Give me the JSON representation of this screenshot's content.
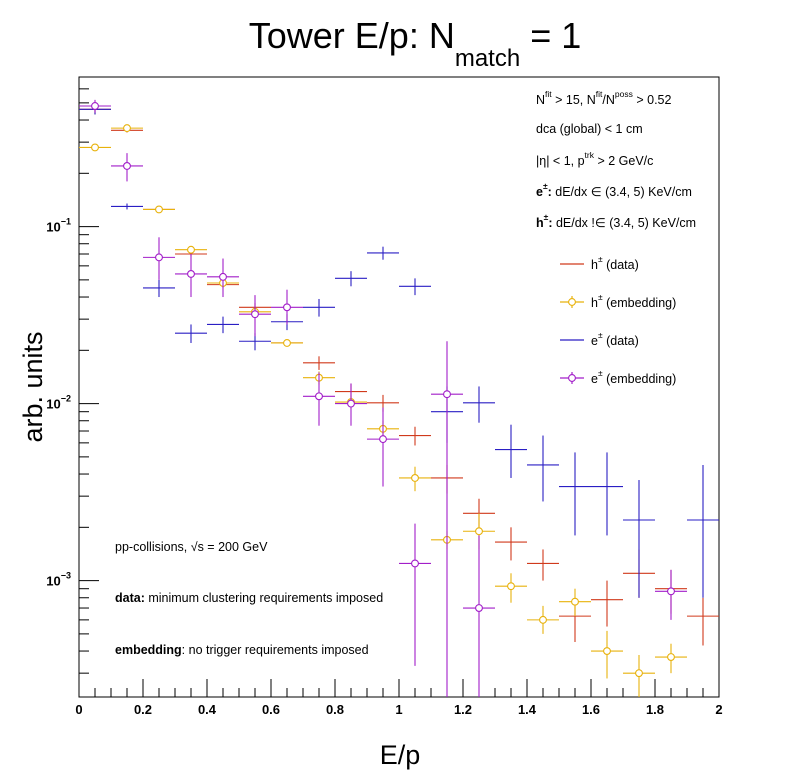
{
  "chart_data": {
    "type": "scatter",
    "title": {
      "main": "Tower E/p: N",
      "sub": "match",
      "suffix": " = 1"
    },
    "xlabel": "E/p",
    "ylabel": "arb. units",
    "xlim": [
      0,
      2
    ],
    "ylim": [
      0.00022,
      0.7
    ],
    "yscale": "log",
    "x_ticks": [
      {
        "v": 0,
        "label": "0"
      },
      {
        "v": 0.2,
        "label": "0.2"
      },
      {
        "v": 0.4,
        "label": "0.4"
      },
      {
        "v": 0.6,
        "label": "0.6"
      },
      {
        "v": 0.8,
        "label": "0.8"
      },
      {
        "v": 1,
        "label": "1"
      },
      {
        "v": 1.2,
        "label": "1.2"
      },
      {
        "v": 1.4,
        "label": "1.4"
      },
      {
        "v": 1.6,
        "label": "1.6"
      },
      {
        "v": 1.8,
        "label": "1.8"
      },
      {
        "v": 2,
        "label": "2"
      }
    ],
    "y_ticks": [
      {
        "v": 0.001,
        "label": "10",
        "exp": "−3"
      },
      {
        "v": 0.01,
        "label": "10",
        "exp": "−2"
      },
      {
        "v": 0.1,
        "label": "10",
        "exp": "−1"
      }
    ],
    "grid": false,
    "legend_position": "top-right",
    "bin_width": 0.1,
    "series": [
      {
        "name": "h± (data)",
        "name_base": "h",
        "name_sup": "±",
        "name_rest": " (data)",
        "color": "#d03a1c",
        "marker": "none",
        "points": [
          [
            0.05,
            0.46,
            0.43,
            0.49
          ],
          [
            0.15,
            0.35,
            0.34,
            0.36
          ],
          [
            0.25,
            0.125,
            0.122,
            0.128
          ],
          [
            0.35,
            0.07,
            0.068,
            0.072
          ],
          [
            0.45,
            0.047,
            0.045,
            0.049
          ],
          [
            0.55,
            0.035,
            0.033,
            0.037
          ],
          [
            0.65,
            0.022,
            0.021,
            0.023
          ],
          [
            0.75,
            0.017,
            0.0155,
            0.0185
          ],
          [
            0.85,
            0.0117,
            0.0105,
            0.0129
          ],
          [
            0.95,
            0.0101,
            0.009,
            0.0112
          ],
          [
            1.05,
            0.0066,
            0.0058,
            0.0074
          ],
          [
            1.15,
            0.0038,
            0.0031,
            0.0045
          ],
          [
            1.25,
            0.0024,
            0.002,
            0.0029
          ],
          [
            1.35,
            0.00165,
            0.0013,
            0.002
          ],
          [
            1.45,
            0.00125,
            0.001,
            0.0015
          ],
          [
            1.55,
            0.00063,
            0.00045,
            0.0008
          ],
          [
            1.65,
            0.00078,
            0.00055,
            0.001
          ],
          [
            1.75,
            0.0011,
            0.0008,
            0.0015
          ],
          [
            1.85,
            0.0009,
            0.00065,
            0.00115
          ],
          [
            1.95,
            0.00063,
            0.00043,
            0.0008
          ]
        ]
      },
      {
        "name": "h± (embedding)",
        "name_base": "h",
        "name_sup": "±",
        "name_rest": " (embedding)",
        "color": "#e8b20c",
        "marker": "circle",
        "points": [
          [
            0.05,
            0.28,
            0.27,
            0.29
          ],
          [
            0.15,
            0.36,
            0.35,
            0.37
          ],
          [
            0.25,
            0.125,
            0.122,
            0.128
          ],
          [
            0.35,
            0.074,
            0.071,
            0.077
          ],
          [
            0.45,
            0.048,
            0.046,
            0.05
          ],
          [
            0.55,
            0.033,
            0.031,
            0.035
          ],
          [
            0.65,
            0.022,
            0.021,
            0.023
          ],
          [
            0.75,
            0.014,
            0.0128,
            0.0152
          ],
          [
            0.85,
            0.0102,
            0.0093,
            0.0111
          ],
          [
            0.95,
            0.0072,
            0.0064,
            0.008
          ],
          [
            1.05,
            0.0038,
            0.0032,
            0.0044
          ],
          [
            1.15,
            0.0017,
            0.0015,
            0.0019
          ],
          [
            1.25,
            0.0019,
            0.0015,
            0.0024
          ],
          [
            1.35,
            0.00093,
            0.00075,
            0.0011
          ],
          [
            1.45,
            0.0006,
            0.0005,
            0.00072
          ],
          [
            1.55,
            0.00076,
            0.00063,
            0.0009
          ],
          [
            1.65,
            0.0004,
            0.00028,
            0.00052
          ],
          [
            1.75,
            0.0003,
            0.00022,
            0.00038
          ],
          [
            1.85,
            0.00037,
            0.0003,
            0.00044
          ]
        ]
      },
      {
        "name": "e± (data)",
        "name_base": "e",
        "name_sup": "±",
        "name_rest": " (data)",
        "color": "#2a1fc4",
        "marker": "none",
        "points": [
          [
            0.05,
            0.46,
            0.43,
            0.49
          ],
          [
            0.15,
            0.13,
            0.125,
            0.135
          ],
          [
            0.25,
            0.045,
            0.04,
            0.05
          ],
          [
            0.35,
            0.025,
            0.022,
            0.028
          ],
          [
            0.45,
            0.028,
            0.025,
            0.031
          ],
          [
            0.55,
            0.0225,
            0.02,
            0.025
          ],
          [
            0.65,
            0.029,
            0.026,
            0.032
          ],
          [
            0.75,
            0.035,
            0.031,
            0.039
          ],
          [
            0.85,
            0.051,
            0.046,
            0.056
          ],
          [
            0.95,
            0.071,
            0.065,
            0.077
          ],
          [
            1.05,
            0.046,
            0.041,
            0.051
          ],
          [
            1.15,
            0.009,
            0.006,
            0.0125
          ],
          [
            1.25,
            0.0101,
            0.0078,
            0.0125
          ],
          [
            1.35,
            0.0055,
            0.0038,
            0.0076
          ],
          [
            1.45,
            0.0045,
            0.0028,
            0.0066
          ],
          [
            1.55,
            0.0034,
            0.0018,
            0.0053
          ],
          [
            1.65,
            0.0034,
            0.0018,
            0.0053
          ],
          [
            1.75,
            0.0022,
            0.0008,
            0.0037
          ],
          [
            1.95,
            0.0022,
            0.0008,
            0.0045
          ]
        ]
      },
      {
        "name": "e± (embedding)",
        "name_base": "e",
        "name_sup": "±",
        "name_rest": " (embedding)",
        "color": "#a21ec9",
        "marker": "circle",
        "points": [
          [
            0.05,
            0.48,
            0.44,
            0.52
          ],
          [
            0.15,
            0.22,
            0.18,
            0.26
          ],
          [
            0.25,
            0.067,
            0.05,
            0.087
          ],
          [
            0.35,
            0.054,
            0.04,
            0.07
          ],
          [
            0.45,
            0.052,
            0.04,
            0.066
          ],
          [
            0.55,
            0.032,
            0.024,
            0.041
          ],
          [
            0.65,
            0.035,
            0.028,
            0.044
          ],
          [
            0.75,
            0.011,
            0.0075,
            0.015
          ],
          [
            0.85,
            0.01,
            0.0075,
            0.013
          ],
          [
            0.95,
            0.0063,
            0.0034,
            0.0095
          ],
          [
            1.05,
            0.00125,
            0.00033,
            0.0021
          ],
          [
            1.15,
            0.0113,
            0.00022,
            0.0225
          ],
          [
            1.25,
            0.0007,
            0.00022,
            0.0018
          ],
          [
            1.85,
            0.00087,
            0.0006,
            0.00115
          ]
        ]
      }
    ],
    "annotations_top": [
      {
        "parts": [
          [
            "N",
            ""
          ],
          [
            "fit",
            "sup"
          ],
          [
            " > 15, N",
            ""
          ],
          [
            "fit",
            "sup"
          ],
          [
            "/N",
            ""
          ],
          [
            "poss",
            "sup"
          ],
          [
            " > 0.52",
            ""
          ]
        ]
      },
      {
        "parts": [
          [
            "dca (global) < 1 cm",
            ""
          ]
        ]
      },
      {
        "parts": [
          [
            "|η| < 1, p",
            ""
          ],
          [
            "trk",
            "sup"
          ],
          [
            " > 2 GeV/c",
            ""
          ]
        ]
      },
      {
        "parts": [
          [
            "e",
            "bold"
          ],
          [
            "±",
            "supbold"
          ],
          [
            ":",
            "bold"
          ],
          [
            " dE/dx ∈ (3.4, 5) KeV/cm",
            ""
          ]
        ]
      },
      {
        "parts": [
          [
            "h",
            "bold"
          ],
          [
            "±",
            "supbold"
          ],
          [
            ":",
            "bold"
          ],
          [
            " dE/dx !∈ (3.4, 5) KeV/cm",
            ""
          ]
        ]
      }
    ],
    "annotations_bottom": [
      {
        "parts": [
          [
            "pp-collisions, √s = 200 GeV",
            ""
          ]
        ]
      },
      {
        "parts": [
          [
            "data:",
            "bold"
          ],
          [
            " minimum clustering requirements imposed",
            ""
          ]
        ]
      },
      {
        "parts": [
          [
            "embedding",
            "bold"
          ],
          [
            ": no trigger requirements imposed",
            ""
          ]
        ]
      }
    ]
  }
}
